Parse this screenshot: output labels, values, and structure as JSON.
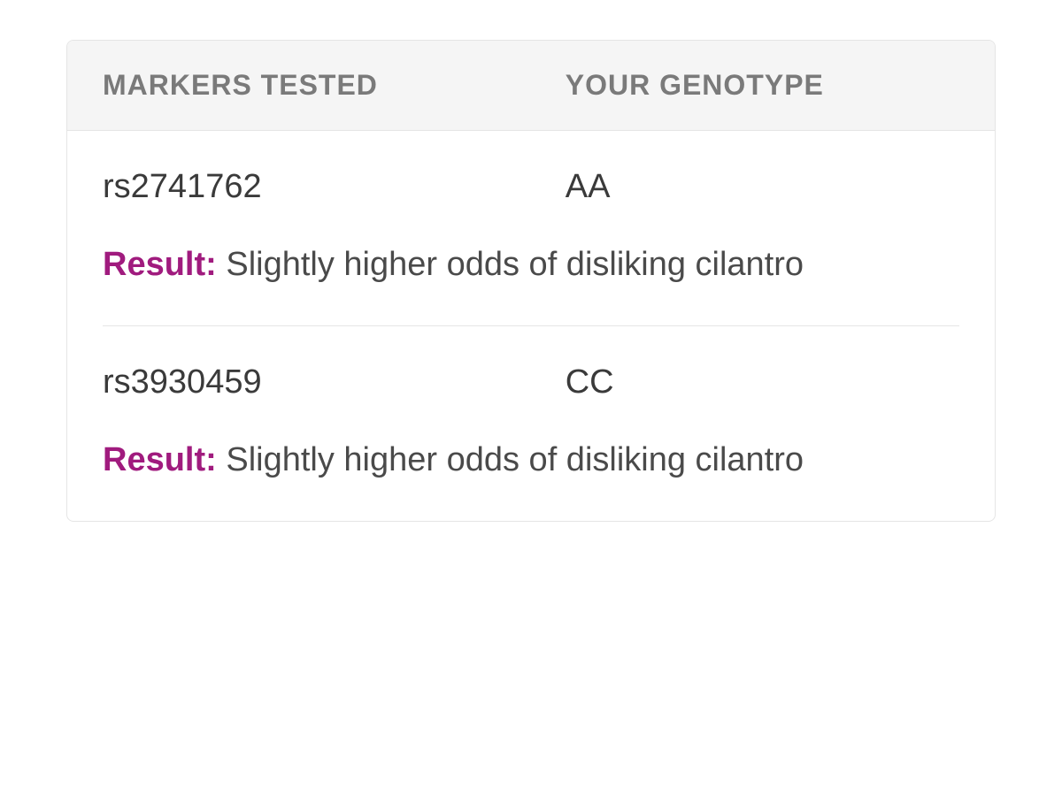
{
  "table": {
    "headers": {
      "markers": "MARKERS TESTED",
      "genotype": "YOUR GENOTYPE"
    },
    "rows": [
      {
        "marker": "rs2741762",
        "genotype": "AA",
        "result_label": "Result:",
        "result_text": " Slightly higher odds of disliking cilantro"
      },
      {
        "marker": "rs3930459",
        "genotype": "CC",
        "result_label": "Result:",
        "result_text": " Slightly higher odds of disliking cilantro"
      }
    ]
  },
  "styling": {
    "colors": {
      "header_bg": "#f5f5f5",
      "header_text": "#7a7a7a",
      "border": "#e5e5e5",
      "body_text": "#4a4a4a",
      "marker_text": "#3a3a3a",
      "result_label": "#a01b7e",
      "background": "#ffffff"
    },
    "typography": {
      "header_fontsize": 32,
      "header_fontweight": 700,
      "body_fontsize": 38,
      "body_fontweight": 400,
      "result_label_fontweight": 700
    },
    "layout": {
      "border_radius": 8,
      "marker_column_width_pct": 54
    }
  }
}
